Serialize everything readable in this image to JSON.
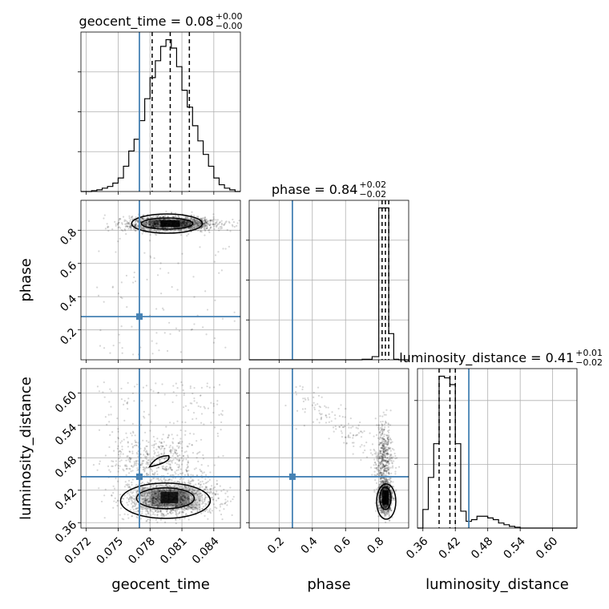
{
  "chart_data": {
    "type": "corner",
    "parameters": [
      "geocent_time",
      "phase",
      "luminosity_distance"
    ],
    "injection": {
      "geocent_time": 0.077,
      "phase": 0.28,
      "luminosity_distance": 0.445,
      "color": "#4682b4"
    },
    "titles": [
      {
        "prefix": "geocent_time = 0.08",
        "sup": "+0.00",
        "sub": "−0.00"
      },
      {
        "prefix": "phase = 0.84",
        "sup": "+0.02",
        "sub": "−0.02"
      },
      {
        "prefix": "luminosity_distance = 0.41",
        "sup": "+0.01",
        "sub": "−0.02"
      }
    ],
    "xlabels": [
      "geocent_time",
      "phase",
      "luminosity_distance"
    ],
    "ylabels": [
      "phase",
      "luminosity_distance"
    ],
    "ranges": {
      "geocent_time": [
        0.0715,
        0.0865
      ],
      "phase": [
        0.02,
        0.98
      ],
      "luminosity_distance": [
        0.35,
        0.645
      ]
    },
    "ticks": {
      "geocent_time": [
        "0.072",
        "0.075",
        "0.078",
        "0.081",
        "0.084"
      ],
      "phase": [
        "0.2",
        "0.4",
        "0.6",
        "0.8"
      ],
      "luminosity_distance": [
        "0.36",
        "0.42",
        "0.48",
        "0.54",
        "0.60"
      ],
      "phase_y": [
        "0.2",
        "0.4",
        "0.6",
        "0.8"
      ],
      "luminosity_distance_y": [
        "0.36",
        "0.42",
        "0.48",
        "0.54",
        "0.60"
      ]
    },
    "quantiles": {
      "geocent_time": [
        0.0782,
        0.0799,
        0.0817
      ],
      "phase": [
        0.82,
        0.84,
        0.86
      ],
      "luminosity_distance": [
        0.39,
        0.41,
        0.42
      ]
    },
    "hist_geocent_time": {
      "bin_edges": [
        0.0715,
        0.0725,
        0.073,
        0.0735,
        0.074,
        0.0745,
        0.075,
        0.0755,
        0.076,
        0.0765,
        0.077,
        0.0775,
        0.078,
        0.0785,
        0.079,
        0.0795,
        0.08,
        0.0805,
        0.081,
        0.0815,
        0.082,
        0.0825,
        0.083,
        0.0835,
        0.084,
        0.0845,
        0.085,
        0.0855,
        0.086,
        0.0865
      ],
      "counts": [
        0,
        1,
        2,
        4,
        6,
        10,
        16,
        30,
        48,
        62,
        84,
        110,
        135,
        155,
        172,
        180,
        170,
        148,
        120,
        100,
        78,
        60,
        44,
        30,
        16,
        8,
        4,
        2,
        0
      ]
    },
    "hist_phase": {
      "bin_edges": [
        0.02,
        0.7,
        0.76,
        0.8,
        0.83,
        0.86,
        0.89,
        0.92,
        0.98
      ],
      "counts": [
        0,
        2,
        12,
        580,
        580,
        100,
        2,
        0
      ]
    },
    "hist_luminosity_distance": {
      "bin_edges": [
        0.35,
        0.36,
        0.37,
        0.38,
        0.39,
        0.4,
        0.41,
        0.42,
        0.43,
        0.44,
        0.45,
        0.46,
        0.47,
        0.48,
        0.49,
        0.5,
        0.51,
        0.52,
        0.53,
        0.54,
        0.55,
        0.645
      ],
      "counts": [
        0,
        22,
        60,
        100,
        180,
        178,
        170,
        100,
        20,
        8,
        10,
        14,
        14,
        12,
        10,
        6,
        4,
        2,
        1,
        0,
        0
      ]
    },
    "axes": {
      "grid": true
    }
  }
}
